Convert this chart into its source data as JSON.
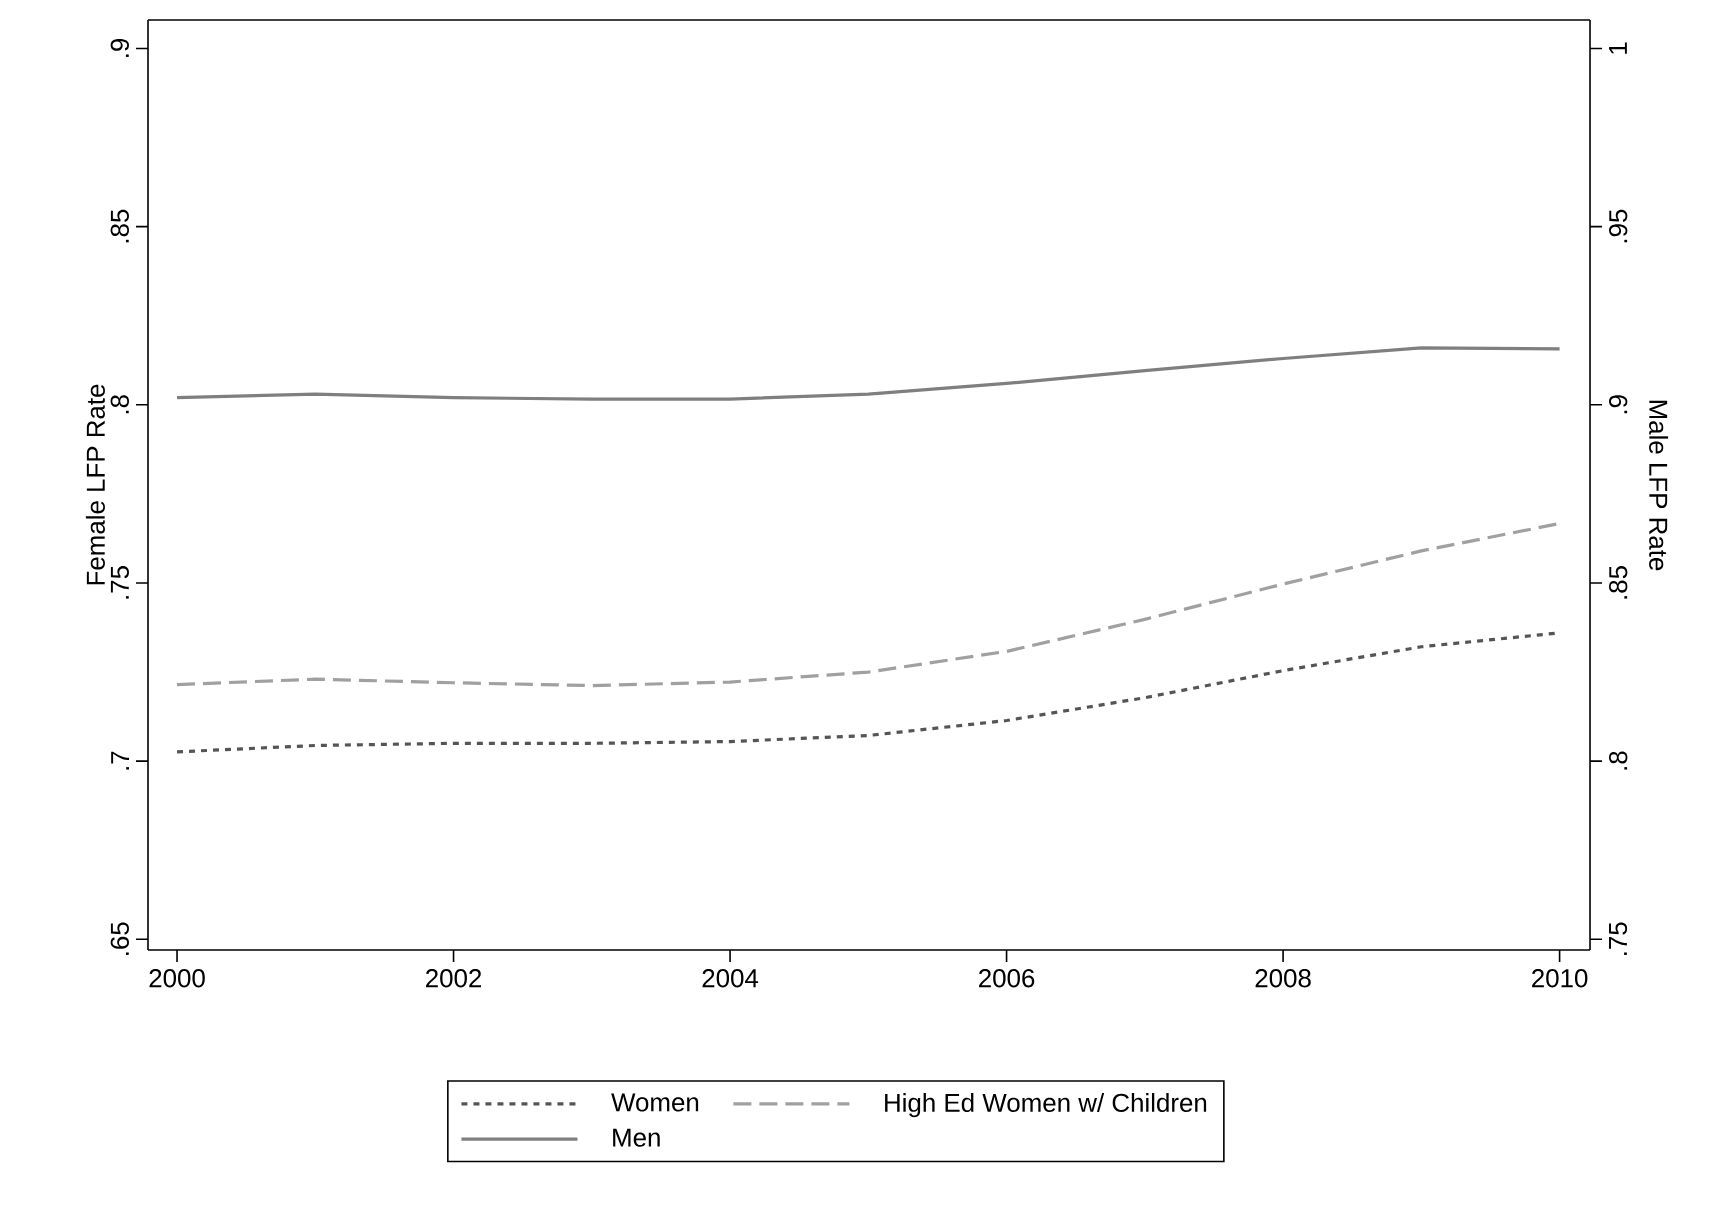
{
  "chart_data": {
    "type": "line",
    "xlabel": null,
    "ylabel": "Female LFP Rate",
    "y2label": "Male LFP Rate",
    "x": [
      2000,
      2001,
      2002,
      2003,
      2004,
      2005,
      2006,
      2007,
      2008,
      2009,
      2010
    ],
    "series": [
      {
        "name": "Women",
        "color": "#555555",
        "line_style": "dotted",
        "values": [
          0.7026,
          0.7044,
          0.705,
          0.705,
          0.7055,
          0.7072,
          0.7114,
          0.7178,
          0.7254,
          0.7321,
          0.736
        ]
      },
      {
        "name": "High Ed Women w/ Children",
        "color": "#a0a0a0",
        "line_style": "dashed",
        "values": [
          0.7215,
          0.723,
          0.722,
          0.7212,
          0.7222,
          0.725,
          0.7308,
          0.7398,
          0.7497,
          0.759,
          0.7667
        ]
      },
      {
        "name": "Men",
        "color": "#7f7f7f",
        "line_style": "solid",
        "axis": "y2",
        "values": [
          0.902,
          0.903,
          0.902,
          0.9016,
          0.9016,
          0.903,
          0.906,
          0.9096,
          0.913,
          0.916,
          0.9157
        ]
      }
    ],
    "xlim": [
      1999.79,
      2010.22
    ],
    "xticks": [
      2000,
      2002,
      2004,
      2006,
      2008,
      2010
    ],
    "ylim": [
      0.647,
      0.908
    ],
    "yticks": [
      {
        "value": 0.65,
        "label": ".65"
      },
      {
        "value": 0.7,
        "label": ".7"
      },
      {
        "value": 0.75,
        "label": ".75"
      },
      {
        "value": 0.8,
        "label": ".8"
      },
      {
        "value": 0.85,
        "label": ".85"
      },
      {
        "value": 0.9,
        "label": ".9"
      }
    ],
    "y2lim": [
      0.747,
      1.008
    ],
    "y2ticks": [
      {
        "value": 0.75,
        "label": ".75"
      },
      {
        "value": 0.8,
        "label": ".8"
      },
      {
        "value": 0.85,
        "label": ".85"
      },
      {
        "value": 0.9,
        "label": ".9"
      },
      {
        "value": 0.95,
        "label": ".95"
      },
      {
        "value": 1,
        "label": "1"
      }
    ],
    "grid": false,
    "legend": "bottom",
    "marker": "none"
  }
}
